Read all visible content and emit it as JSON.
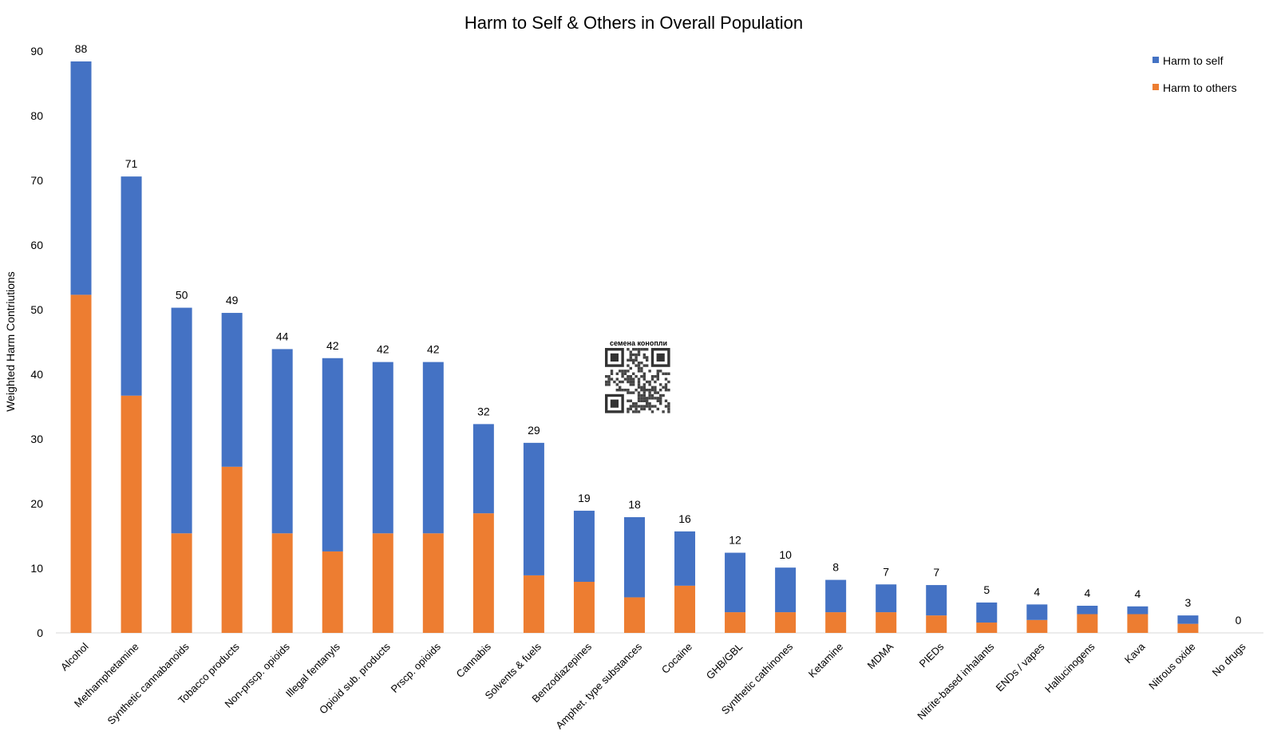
{
  "chart_data": {
    "type": "bar",
    "stacked": true,
    "title": "Harm to Self & Others in Overall Population",
    "xlabel": "",
    "ylabel": "Weighted Harm Contriutions",
    "ylim": [
      0,
      90
    ],
    "yticks": [
      "0",
      "10",
      "20",
      "30",
      "40",
      "50",
      "60",
      "70",
      "80",
      "90"
    ],
    "grid": false,
    "legend_position": "top-right",
    "categories": [
      "Alcohol",
      "Methamphetamine",
      "Synthetic cannabanoids",
      "Tobacco products",
      "Non-prscp. opioids",
      "Illegal fentanyls",
      "Opioid sub. products",
      "Prscp. opioids",
      "Cannabis",
      "Solvents & fuels",
      "Benzodiazepines",
      "Amphet. type substances",
      "Cocaine",
      "GHB/GBL",
      "Synthetic cathinones",
      "Ketamine",
      "MDMA",
      "PIEDs",
      "Nitrite-based inhalants",
      "ENDs / vapes",
      "Hallucinogens",
      "Kava",
      "Nitrous oxide",
      "No drugs"
    ],
    "series": [
      {
        "name": "Harm to others",
        "color": "#ED7D31",
        "values": [
          52.3,
          36.7,
          15.4,
          25.7,
          15.4,
          12.6,
          15.4,
          15.4,
          18.5,
          8.9,
          7.9,
          5.5,
          7.3,
          3.2,
          3.2,
          3.2,
          3.2,
          2.7,
          1.6,
          2.0,
          2.9,
          2.9,
          1.4,
          0
        ]
      },
      {
        "name": "Harm to self",
        "color": "#4472C4",
        "values": [
          36.1,
          33.9,
          34.9,
          23.8,
          28.5,
          29.9,
          26.5,
          26.5,
          13.8,
          20.5,
          11.0,
          12.4,
          8.4,
          9.2,
          6.9,
          5.0,
          4.3,
          4.7,
          3.1,
          2.4,
          1.3,
          1.2,
          1.3,
          0
        ]
      }
    ],
    "totals": [
      "88",
      "71",
      "50",
      "49",
      "44",
      "42",
      "42",
      "42",
      "32",
      "29",
      "19",
      "18",
      "16",
      "12",
      "10",
      "8",
      "7",
      "7",
      "5",
      "4",
      "4",
      "4",
      "3",
      "0"
    ],
    "legend": [
      "Harm to self",
      "Harm to others"
    ]
  },
  "watermark": {
    "label": "семена конопли"
  }
}
